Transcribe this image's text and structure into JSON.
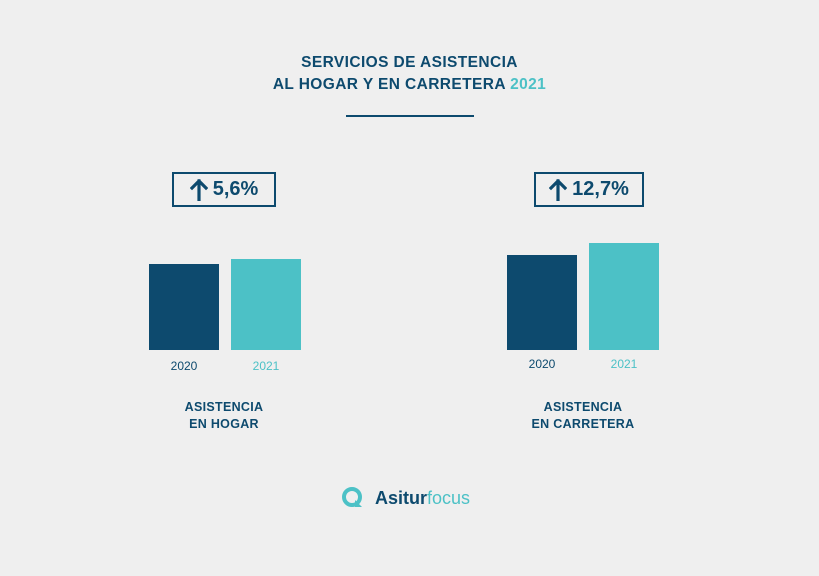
{
  "title": {
    "line1": "SERVICIOS DE ASISTENCIA",
    "line2": "AL HOGAR Y EN CARRETERA",
    "year": "2021"
  },
  "colors": {
    "dark": "#0d4a6e",
    "accent": "#4cc1c6",
    "background": "#efefef"
  },
  "chart_data": [
    {
      "type": "bar",
      "categories": [
        "2020",
        "2021"
      ],
      "values": [
        100,
        105.6
      ],
      "change_label": "5,6%",
      "change_direction": "up",
      "caption": [
        "ASISTENCIA",
        "EN HOGAR"
      ]
    },
    {
      "type": "bar",
      "categories": [
        "2020",
        "2021"
      ],
      "values": [
        100,
        112.7
      ],
      "change_label": "12,7%",
      "change_direction": "up",
      "caption": [
        "ASISTENCIA",
        "EN CARRETERA"
      ]
    }
  ],
  "logo": {
    "brand": "Asitur",
    "brand_suffix": "focus",
    "icon": "search-q-icon"
  }
}
